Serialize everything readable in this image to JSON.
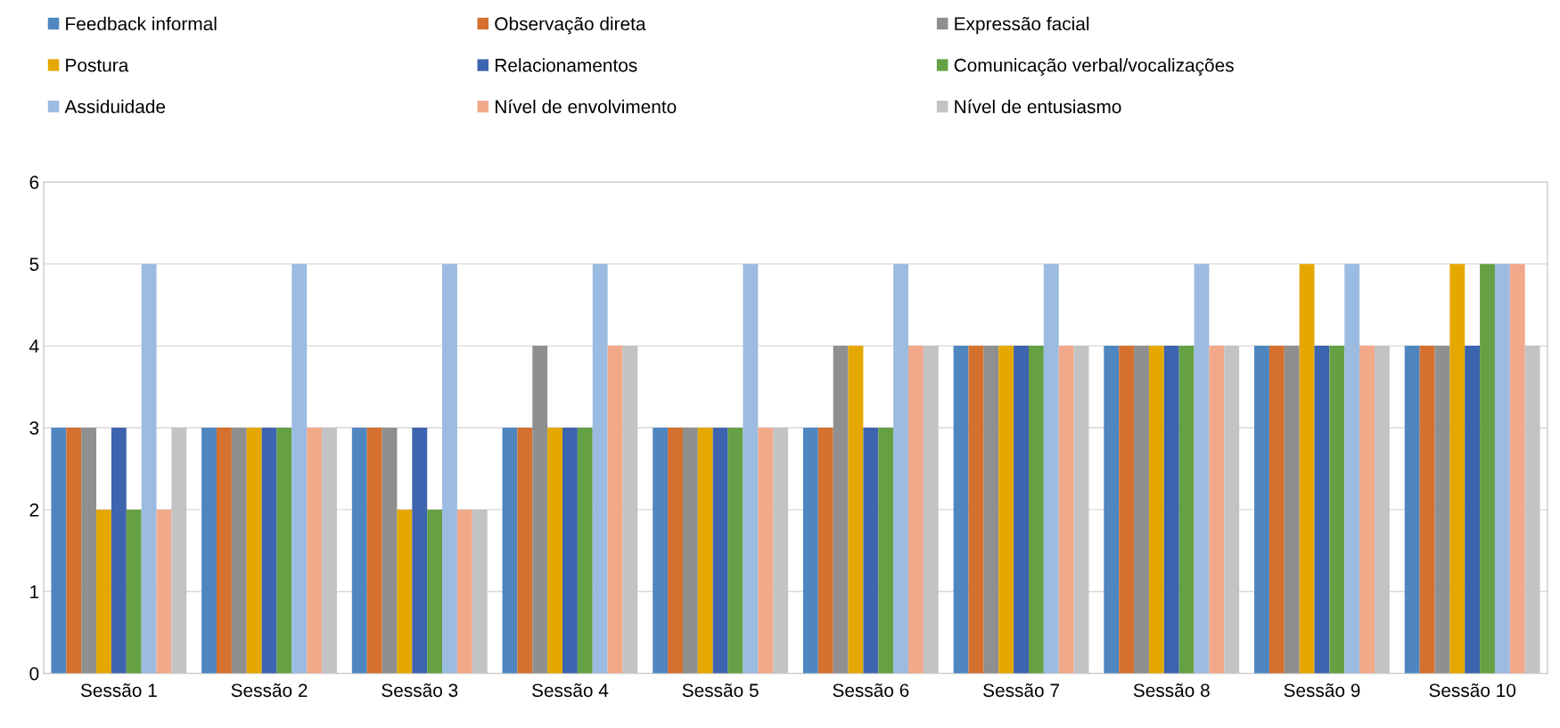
{
  "chart_data": {
    "type": "bar",
    "categories": [
      "Sessão 1",
      "Sessão 2",
      "Sessão 3",
      "Sessão 4",
      "Sessão 5",
      "Sessão 6",
      "Sessão 7",
      "Sessão 8",
      "Sessão 9",
      "Sessão 10"
    ],
    "series": [
      {
        "name": "Feedback informal",
        "color": "#4f86c0",
        "values": [
          3,
          3,
          3,
          3,
          3,
          3,
          4,
          4,
          4,
          4
        ]
      },
      {
        "name": "Observação direta",
        "color": "#d5702e",
        "values": [
          3,
          3,
          3,
          3,
          3,
          3,
          4,
          4,
          4,
          4
        ]
      },
      {
        "name": "Expressão facial",
        "color": "#8f8f8f",
        "values": [
          3,
          3,
          3,
          4,
          3,
          4,
          4,
          4,
          4,
          4
        ]
      },
      {
        "name": "Postura",
        "color": "#e5a800",
        "values": [
          2,
          3,
          2,
          3,
          3,
          4,
          4,
          4,
          5,
          5
        ]
      },
      {
        "name": "Relacionamentos",
        "color": "#3d64ae",
        "values": [
          3,
          3,
          3,
          3,
          3,
          3,
          4,
          4,
          4,
          4
        ]
      },
      {
        "name": "Comunicação verbal/vocalizações",
        "color": "#65a044",
        "values": [
          2,
          3,
          2,
          3,
          3,
          3,
          4,
          4,
          4,
          5
        ]
      },
      {
        "name": "Assiduidade",
        "color": "#9bbbe1",
        "values": [
          5,
          5,
          5,
          5,
          5,
          5,
          5,
          5,
          5,
          5
        ]
      },
      {
        "name": "Nível de envolvimento",
        "color": "#f2a98a",
        "values": [
          2,
          3,
          2,
          4,
          3,
          4,
          4,
          4,
          4,
          5
        ]
      },
      {
        "name": "Nível de entusiasmo",
        "color": "#c3c3c3",
        "values": [
          3,
          3,
          2,
          4,
          3,
          4,
          4,
          4,
          4,
          4
        ]
      }
    ],
    "ylim": [
      0,
      6
    ],
    "yticks": [
      0,
      1,
      2,
      3,
      4,
      5,
      6
    ],
    "grid": "y",
    "legend": "top"
  }
}
